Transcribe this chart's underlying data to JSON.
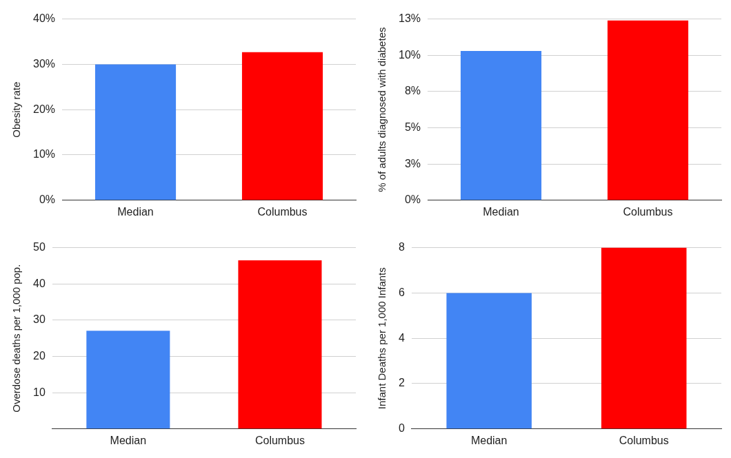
{
  "chart_data": [
    {
      "type": "bar",
      "categories": [
        "Median",
        "Columbus"
      ],
      "values": [
        30,
        32.7
      ],
      "colors": [
        "#4285f4",
        "#ff0000"
      ],
      "ylabel": "Obesity rate",
      "ylim": [
        0,
        40
      ],
      "yticks": [
        {
          "value": 0,
          "label": "0%"
        },
        {
          "value": 10,
          "label": "10%"
        },
        {
          "value": 20,
          "label": "20%"
        },
        {
          "value": 30,
          "label": "30%"
        },
        {
          "value": 40,
          "label": "40%"
        }
      ],
      "grid": "y",
      "legend": false
    },
    {
      "type": "bar",
      "categories": [
        "Median",
        "Columbus"
      ],
      "values": [
        10.3,
        12.4
      ],
      "colors": [
        "#4285f4",
        "#ff0000"
      ],
      "ylabel": "% of adults diagnosed with diabetes",
      "ylim": [
        0,
        12.5
      ],
      "yticks": [
        {
          "value": 0,
          "label": "0%"
        },
        {
          "value": 2.5,
          "label": "3%"
        },
        {
          "value": 5,
          "label": "5%"
        },
        {
          "value": 7.5,
          "label": "8%"
        },
        {
          "value": 10,
          "label": "10%"
        },
        {
          "value": 12.5,
          "label": "13%"
        }
      ],
      "grid": "y",
      "legend": false
    },
    {
      "type": "bar",
      "categories": [
        "Median",
        "Columbus"
      ],
      "values": [
        27.1,
        46.5
      ],
      "colors": [
        "#4285f4",
        "#ff0000"
      ],
      "ylabel": "Overdose deaths per 1,000 pop.",
      "ylim": [
        0,
        50
      ],
      "yticks": [
        {
          "value": 0,
          "label": null
        },
        10,
        20,
        30,
        40,
        50
      ],
      "grid": "y",
      "legend": false
    },
    {
      "type": "bar",
      "categories": [
        "Median",
        "Columbus"
      ],
      "values": [
        6,
        8
      ],
      "colors": [
        "#4285f4",
        "#ff0000"
      ],
      "ylabel": "Infant Deaths per 1,000 Infants",
      "ylim": [
        0,
        8
      ],
      "yticks": [
        0,
        2,
        4,
        6,
        8
      ],
      "grid": "y",
      "legend": false
    }
  ]
}
